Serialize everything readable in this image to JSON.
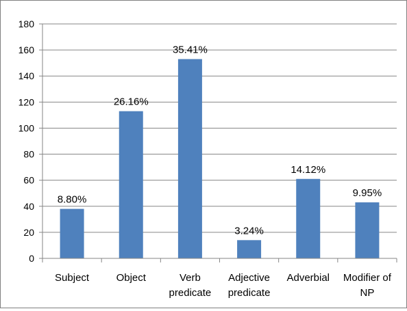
{
  "chart_data": {
    "type": "bar",
    "title": "",
    "xlabel": "",
    "ylabel": "",
    "categories": [
      "Subject",
      "Object",
      "Verb predicate",
      "Adjective predicate",
      "Adverbial",
      "Modifier of NP"
    ],
    "category_lines": [
      [
        "Subject"
      ],
      [
        "Object"
      ],
      [
        "Verb",
        "predicate"
      ],
      [
        "Adjective",
        "predicate"
      ],
      [
        "Adverbial"
      ],
      [
        "Modifier of",
        "NP"
      ]
    ],
    "values": [
      38,
      113,
      153,
      14,
      61,
      43
    ],
    "data_labels": [
      "8.80%",
      "26.16%",
      "35.41%",
      "3.24%",
      "14.12%",
      "9.95%"
    ],
    "ylim": [
      0,
      180
    ],
    "yticks": [
      0,
      20,
      40,
      60,
      80,
      100,
      120,
      140,
      160,
      180
    ],
    "grid": "horizontal",
    "legend": "none",
    "bar_color": "#4f81bd",
    "grid_color": "#868686",
    "axis_color": "#868686"
  }
}
